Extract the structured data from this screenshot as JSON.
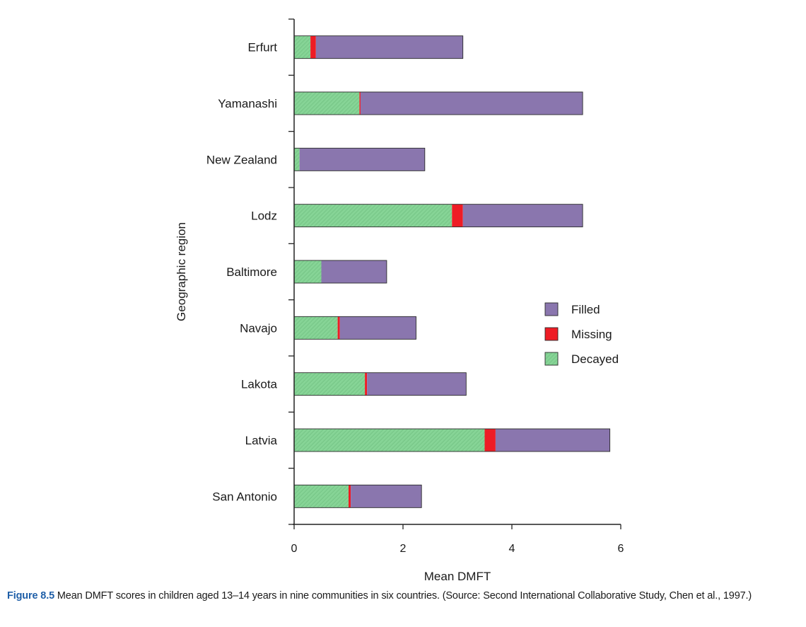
{
  "chart_data": {
    "type": "bar",
    "orientation": "horizontal",
    "stacked": true,
    "categories": [
      "Erfurt",
      "Yamanashi",
      "New Zealand",
      "Lodz",
      "Baltimore",
      "Navajo",
      "Lakota",
      "Latvia",
      "San Antonio"
    ],
    "series": [
      {
        "name": "Decayed",
        "color": "#7fcf8f",
        "values": [
          0.3,
          1.2,
          0.1,
          2.9,
          0.5,
          0.8,
          1.3,
          3.5,
          1.0
        ]
      },
      {
        "name": "Missing",
        "color": "#ee1c25",
        "values": [
          0.1,
          0.02,
          0.0,
          0.2,
          0.0,
          0.04,
          0.04,
          0.2,
          0.04
        ]
      },
      {
        "name": "Filled",
        "color": "#8a76ae",
        "values": [
          2.7,
          4.08,
          2.3,
          2.2,
          1.2,
          1.4,
          1.82,
          2.1,
          1.3
        ]
      }
    ],
    "xlabel": "Mean DMFT",
    "ylabel": "Geographic region",
    "xlim": [
      0,
      6
    ],
    "xticks": [
      0,
      2,
      4,
      6
    ],
    "tick_labels": [
      "0",
      "2",
      "4",
      "6"
    ],
    "legend": {
      "placement": "right",
      "order": [
        "Filled",
        "Missing",
        "Decayed"
      ]
    },
    "grid": false
  },
  "caption": {
    "figure_number": "Figure 8.5",
    "text": " Mean DMFT scores in children aged 13–14 years in nine communities in six countries. (Source: Second International Collaborative Study, Chen et al., 1997.)"
  }
}
